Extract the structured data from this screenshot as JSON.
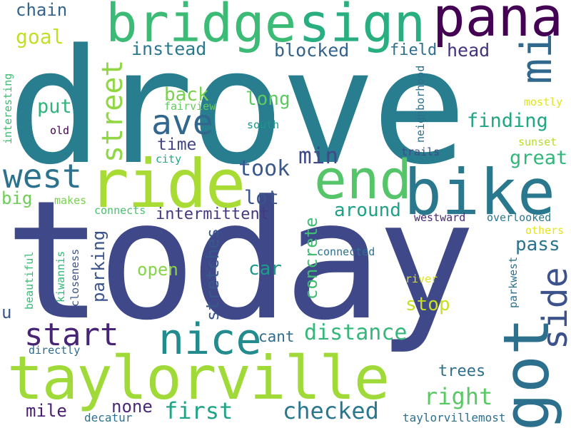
{
  "words": {
    "drove": {
      "text": "drove",
      "color": "#287d8e"
    },
    "today": {
      "text": "today",
      "color": "#3f4889"
    },
    "taylorville": {
      "text": "taylorville",
      "color": "#a0da39"
    },
    "bike": {
      "text": "bike",
      "color": "#2a788e"
    },
    "ride": {
      "text": "ride",
      "color": "#a8db34"
    },
    "got": {
      "text": "got",
      "color": "#2d708e"
    },
    "bridge": {
      "text": "bridge",
      "color": "#3bbb75"
    },
    "sign": {
      "text": "sign",
      "color": "#29af7f"
    },
    "pana": {
      "text": "pana",
      "color": "#440154"
    },
    "end": {
      "text": "end",
      "color": "#54c568"
    },
    "nice": {
      "text": "nice",
      "color": "#238a8d"
    },
    "mi": {
      "text": "mi",
      "color": "#31688e"
    },
    "street": {
      "text": "street",
      "color": "#90d743"
    },
    "west": {
      "text": "west",
      "color": "#2c728e"
    },
    "start": {
      "text": "start",
      "color": "#482475"
    },
    "ave": {
      "text": "ave",
      "color": "#31678e"
    },
    "side": {
      "text": "side",
      "color": "#3b528b"
    },
    "chain": {
      "text": "chain",
      "color": "#33638d"
    },
    "goal": {
      "text": "goal",
      "color": "#c2df23"
    },
    "instead": {
      "text": "instead",
      "color": "#2a788e"
    },
    "blocked": {
      "text": "blocked",
      "color": "#33638d"
    },
    "field": {
      "text": "field",
      "color": "#2e6e8e"
    },
    "head": {
      "text": "head",
      "color": "#46327e"
    },
    "back": {
      "text": "back",
      "color": "#7ad151"
    },
    "long": {
      "text": "long",
      "color": "#5ec962"
    },
    "put": {
      "text": "put",
      "color": "#2fb47c"
    },
    "finding": {
      "text": "finding",
      "color": "#21a685"
    },
    "mostly": {
      "text": "mostly",
      "color": "#e2e418"
    },
    "fairview": {
      "text": "fairview",
      "color": "#63cb5f"
    },
    "south": {
      "text": "south",
      "color": "#1f958b"
    },
    "sunset": {
      "text": "sunset",
      "color": "#b5de2b"
    },
    "time": {
      "text": "time",
      "color": "#414487"
    },
    "took": {
      "text": "took",
      "color": "#38588c"
    },
    "min": {
      "text": "min",
      "color": "#3e4a89"
    },
    "great": {
      "text": "great",
      "color": "#32b67a"
    },
    "city": {
      "text": "city",
      "color": "#22a884"
    },
    "trails": {
      "text": "trails",
      "color": "#3e4c8a"
    },
    "interesting": {
      "text": "interesting",
      "color": "#3fbc73"
    },
    "old": {
      "text": "old",
      "color": "#440154"
    },
    "neighborhood": {
      "text": "neighborhood",
      "color": "#2d708e"
    },
    "big": {
      "text": "big",
      "color": "#6ece58"
    },
    "makes": {
      "text": "makes",
      "color": "#7ad151"
    },
    "connects": {
      "text": "connects",
      "color": "#4ac16d"
    },
    "lot": {
      "text": "lot",
      "color": "#39558c"
    },
    "around": {
      "text": "around",
      "color": "#1fa188"
    },
    "intermittent": {
      "text": "intermittent",
      "color": "#443a83"
    },
    "westward": {
      "text": "westward",
      "color": "#482878"
    },
    "overlooked": {
      "text": "overlooked",
      "color": "#2a788e"
    },
    "others": {
      "text": "others",
      "color": "#e5e419"
    },
    "parking": {
      "text": "parking",
      "color": "#3b528b"
    },
    "stretches": {
      "text": "stretches",
      "color": "#38588c"
    },
    "concrete": {
      "text": "concrete",
      "color": "#40bd72"
    },
    "pass": {
      "text": "pass",
      "color": "#2c728e"
    },
    "open": {
      "text": "open",
      "color": "#86d549"
    },
    "car": {
      "text": "car",
      "color": "#1e9b8a"
    },
    "connected": {
      "text": "connected",
      "color": "#2c728e"
    },
    "beautiful": {
      "text": "beautiful",
      "color": "#3bbb75"
    },
    "kiwannis": {
      "text": "kiwannis",
      "color": "#35b779"
    },
    "closeness": {
      "text": "closeness",
      "color": "#3b528b"
    },
    "river": {
      "text": "river",
      "color": "#dde318"
    },
    "parkwest": {
      "text": "parkwest",
      "color": "#2d708e"
    },
    "stop": {
      "text": "stop",
      "color": "#c8e020"
    },
    "u": {
      "text": "u",
      "color": "#39568c"
    },
    "distance": {
      "text": "distance",
      "color": "#35b779"
    },
    "cant": {
      "text": "cant",
      "color": "#2f6c8e"
    },
    "directly": {
      "text": "directly",
      "color": "#306a8e"
    },
    "trees": {
      "text": "trees",
      "color": "#2e6f8e"
    },
    "right": {
      "text": "right",
      "color": "#5ac864"
    },
    "none": {
      "text": "none",
      "color": "#482979"
    },
    "first": {
      "text": "first",
      "color": "#20a386"
    },
    "checked": {
      "text": "checked",
      "color": "#2a788e"
    },
    "mile": {
      "text": "mile",
      "color": "#481f70"
    },
    "decatur": {
      "text": "decatur",
      "color": "#2c728e"
    },
    "taylorvillemost": {
      "text": "taylorvillemost",
      "color": "#2d708e"
    }
  }
}
